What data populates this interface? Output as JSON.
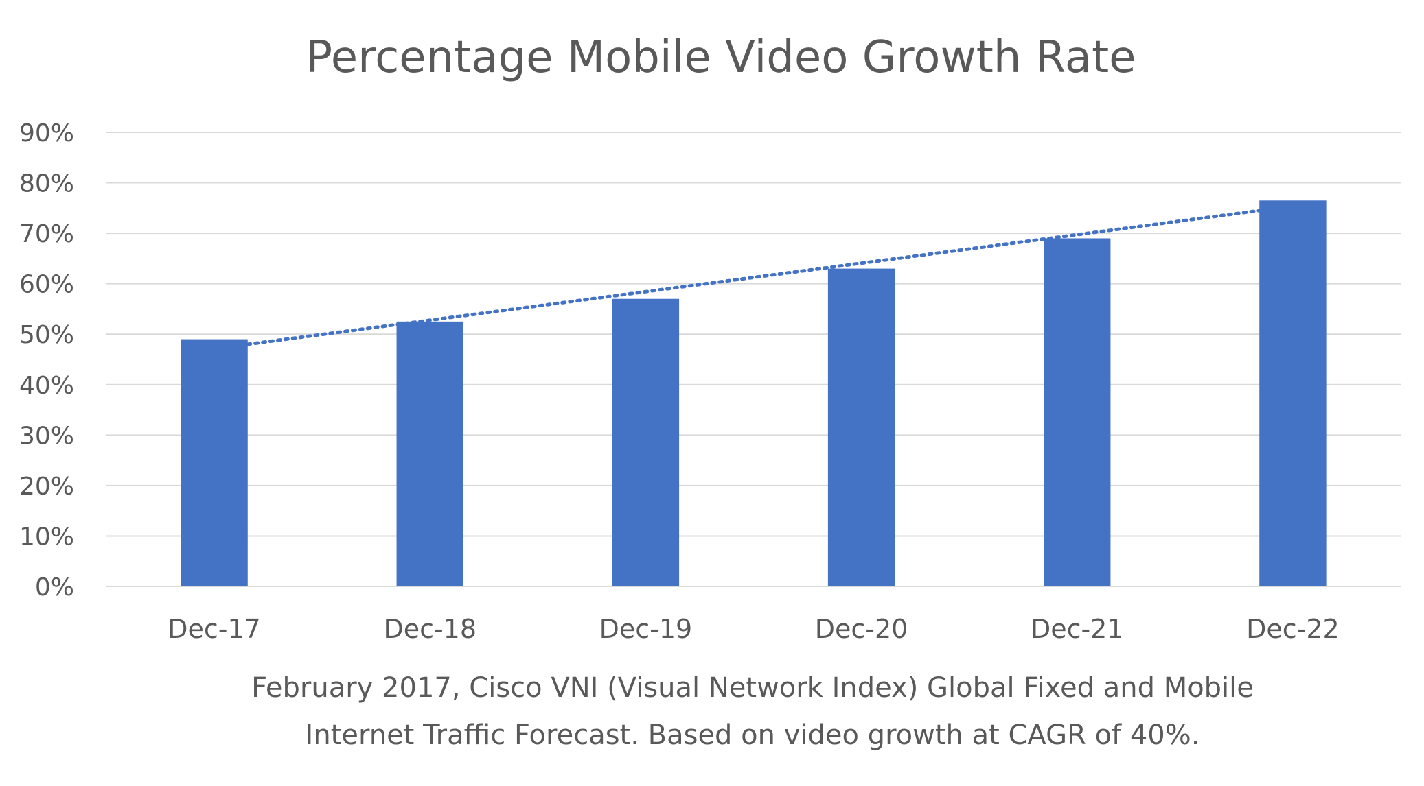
{
  "chart_data": {
    "type": "bar",
    "title": "Percentage Mobile Video Growth Rate",
    "categories": [
      "Dec-17",
      "Dec-18",
      "Dec-19",
      "Dec-20",
      "Dec-21",
      "Dec-22"
    ],
    "values": [
      49,
      52.5,
      57,
      63,
      69,
      76.5
    ],
    "ylim": [
      0,
      90
    ],
    "yticks": [
      0,
      10,
      20,
      30,
      40,
      50,
      60,
      70,
      80,
      90
    ],
    "ytick_labels": [
      "0%",
      "10%",
      "20%",
      "30%",
      "40%",
      "50%",
      "60%",
      "70%",
      "80%",
      "90%"
    ],
    "xlabel": "",
    "ylabel": "",
    "grid": true,
    "legend": "none",
    "trendline": {
      "type": "linear",
      "style": "dotted",
      "from": {
        "category": "Dec-17",
        "value": 48
      },
      "to": {
        "category": "Dec-22",
        "value": 74.5
      }
    },
    "caption": [
      "February 2017, Cisco VNI (Visual Network Index) Global Fixed and Mobile",
      "Internet Traffic Forecast. Based on video growth at CAGR of 40%."
    ],
    "colors": {
      "bar": "#4472C4",
      "trendline": "#4472C4",
      "grid": "#D9D9D9",
      "text": "#595959"
    }
  }
}
